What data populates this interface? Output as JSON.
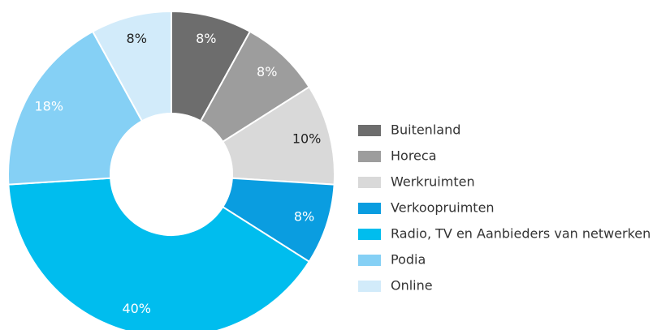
{
  "chart_data": {
    "type": "donut",
    "categories": [
      "Buitenland",
      "Horeca",
      "Werkruimten",
      "Verkoopruimten",
      "Radio, TV en Aanbieders van netwerken",
      "Podia",
      "Online"
    ],
    "values": [
      8,
      8,
      10,
      8,
      40,
      18,
      8
    ],
    "value_labels": [
      "8%",
      "8%",
      "10%",
      "8%",
      "40%",
      "18%",
      "8%"
    ],
    "colors": [
      "#6d6d6d",
      "#9d9d9d",
      "#d9d9d9",
      "#0a9de0",
      "#00bdee",
      "#85d0f5",
      "#d2ebfa"
    ],
    "legend": "right"
  }
}
